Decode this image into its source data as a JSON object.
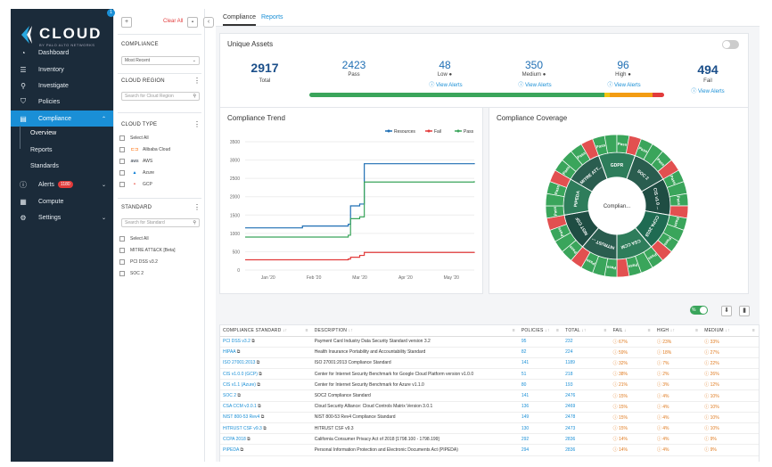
{
  "sidebar": {
    "logo": "CLOUD",
    "logo_sub": "BY PALO ALTO NETWORKS",
    "items": [
      {
        "label": "Dashboard",
        "icon": "dashboard-icon",
        "glyph": "◔"
      },
      {
        "label": "Inventory",
        "icon": "inventory-icon",
        "glyph": "☰"
      },
      {
        "label": "Investigate",
        "icon": "investigate-icon",
        "glyph": "⚲"
      },
      {
        "label": "Policies",
        "icon": "policies-icon",
        "glyph": "⛉"
      },
      {
        "label": "Compliance",
        "icon": "compliance-icon",
        "glyph": "▤"
      },
      {
        "label": "Alerts",
        "icon": "alerts-icon",
        "glyph": "ⓘ",
        "badge": "1180"
      },
      {
        "label": "Compute",
        "icon": "compute-icon",
        "glyph": "▦"
      },
      {
        "label": "Settings",
        "icon": "settings-icon",
        "glyph": "⚙"
      }
    ],
    "sub_items": [
      "Overview",
      "Reports",
      "Standards"
    ]
  },
  "filter": {
    "clear_all": "Clear All",
    "notif": "1",
    "compliance_title": "COMPLIANCE",
    "compliance_select": "Most Recent",
    "region_title": "CLOUD REGION",
    "region_placeholder": "Search for Cloud Region",
    "type_title": "CLOUD TYPE",
    "types": [
      "Select All",
      "Alibaba Cloud",
      "AWS",
      "Azure",
      "GCP"
    ],
    "standard_title": "STANDARD",
    "standard_placeholder": "Search for Standard",
    "standards": [
      "Select All",
      "MITRE ATT&CK [Beta]",
      "PCI DSS v3.2",
      "SOC 2"
    ]
  },
  "tabs": {
    "compliance": "Compliance",
    "reports": "Reports"
  },
  "assets": {
    "title": "Unique Assets",
    "total": "2917",
    "total_label": "Total",
    "pass": "2423",
    "pass_label": "Pass",
    "low": "48",
    "low_label": "Low",
    "medium": "350",
    "medium_label": "Medium",
    "high": "96",
    "high_label": "High",
    "fail": "494",
    "fail_label": "Fail",
    "view": "View Alerts"
  },
  "trend": {
    "title": "Compliance Trend"
  },
  "coverage": {
    "title": "Compliance Coverage",
    "center": "Complian...",
    "labels": [
      "GDPR",
      "SOC 2",
      "CIS v1.0 ...",
      "CCPA 2018",
      "CSA CCM",
      "HITRUST ...",
      "NIST CSF",
      "PIPEDA",
      "MITRE ATT...",
      "Pass"
    ]
  },
  "chart_data": [
    {
      "type": "line",
      "title": "Compliance Trend",
      "legend": [
        "Resources",
        "Fail",
        "Pass"
      ],
      "x": [
        "Jan '20",
        "Feb '20",
        "Mar '20",
        "Apr '20",
        "May '20"
      ],
      "ylim": [
        0,
        3500
      ],
      "yticks": [
        "3500",
        "3000",
        "2500",
        "2000",
        "1500",
        "1000",
        "500",
        "0"
      ],
      "series": [
        {
          "name": "Resources",
          "color": "#1f6fb4",
          "points": [
            [
              0,
              1150
            ],
            [
              0.25,
              1200
            ],
            [
              0.45,
              1250
            ],
            [
              0.46,
              1750
            ],
            [
              0.5,
              1800
            ],
            [
              0.52,
              2900
            ],
            [
              1,
              2917
            ]
          ]
        },
        {
          "name": "Fail",
          "color": "#e23b3b",
          "points": [
            [
              0,
              280
            ],
            [
              0.45,
              300
            ],
            [
              0.46,
              350
            ],
            [
              0.5,
              400
            ],
            [
              0.52,
              480
            ],
            [
              1,
              494
            ]
          ]
        },
        {
          "name": "Pass",
          "color": "#3aa55b",
          "points": [
            [
              0,
              900
            ],
            [
              0.45,
              950
            ],
            [
              0.46,
              1400
            ],
            [
              0.5,
              1450
            ],
            [
              0.52,
              2400
            ],
            [
              1,
              2423
            ]
          ]
        }
      ]
    }
  ],
  "table": {
    "headers": [
      "COMPLIANCE STANDARD",
      "DESCRIPTION",
      "POLICIES",
      "TOTAL",
      "FAIL",
      "HIGH",
      "MEDIUM"
    ],
    "rows": [
      [
        "PCI DSS v3.2",
        "Payment Card Industry Data Security Standard version 3.2",
        "95",
        "232",
        "67%",
        "23%",
        "33%"
      ],
      [
        "HIPAA",
        "Health Insurance Portability and Accountability Standard",
        "82",
        "224",
        "59%",
        "18%",
        "27%"
      ],
      [
        "ISO 27001:2013",
        "ISO 27001:2013 Compliance Standard",
        "141",
        "1189",
        "32%",
        "7%",
        "22%"
      ],
      [
        "CIS v1.0.0 (GCP)",
        "Center for Internet Security Benchmark for Google Cloud Platform version v1.0.0",
        "51",
        "218",
        "38%",
        "2%",
        "26%"
      ],
      [
        "CIS v1.1 (Azure)",
        "Center for Internet Security Benchmark for Azure v1.1.0",
        "80",
        "193",
        "21%",
        "3%",
        "12%"
      ],
      [
        "SOC 2",
        "SOC2 Compliance Standard",
        "141",
        "2476",
        "15%",
        "4%",
        "10%"
      ],
      [
        "CSA CCM v3.0.1",
        "Cloud Security Alliance: Cloud Controls Matrix Version 3.0.1",
        "136",
        "2469",
        "15%",
        "4%",
        "10%"
      ],
      [
        "NIST 800-53 Rev4",
        "NIST 800-53 Rev4 Compliance Standard",
        "149",
        "2478",
        "15%",
        "4%",
        "10%"
      ],
      [
        "HITRUST CSF v9.3",
        "HITRUST CSF v9.3",
        "130",
        "2473",
        "15%",
        "4%",
        "10%"
      ],
      [
        "CCPA 2018",
        "California Consumer Privacy Act of 2018 [1798.100 - 1798.199]",
        "292",
        "2836",
        "14%",
        "4%",
        "9%"
      ],
      [
        "PIPEDA",
        "Personal Information Protection and Electronic Documents Act (PIPEDA)",
        "294",
        "2836",
        "14%",
        "4%",
        "9%"
      ]
    ]
  }
}
